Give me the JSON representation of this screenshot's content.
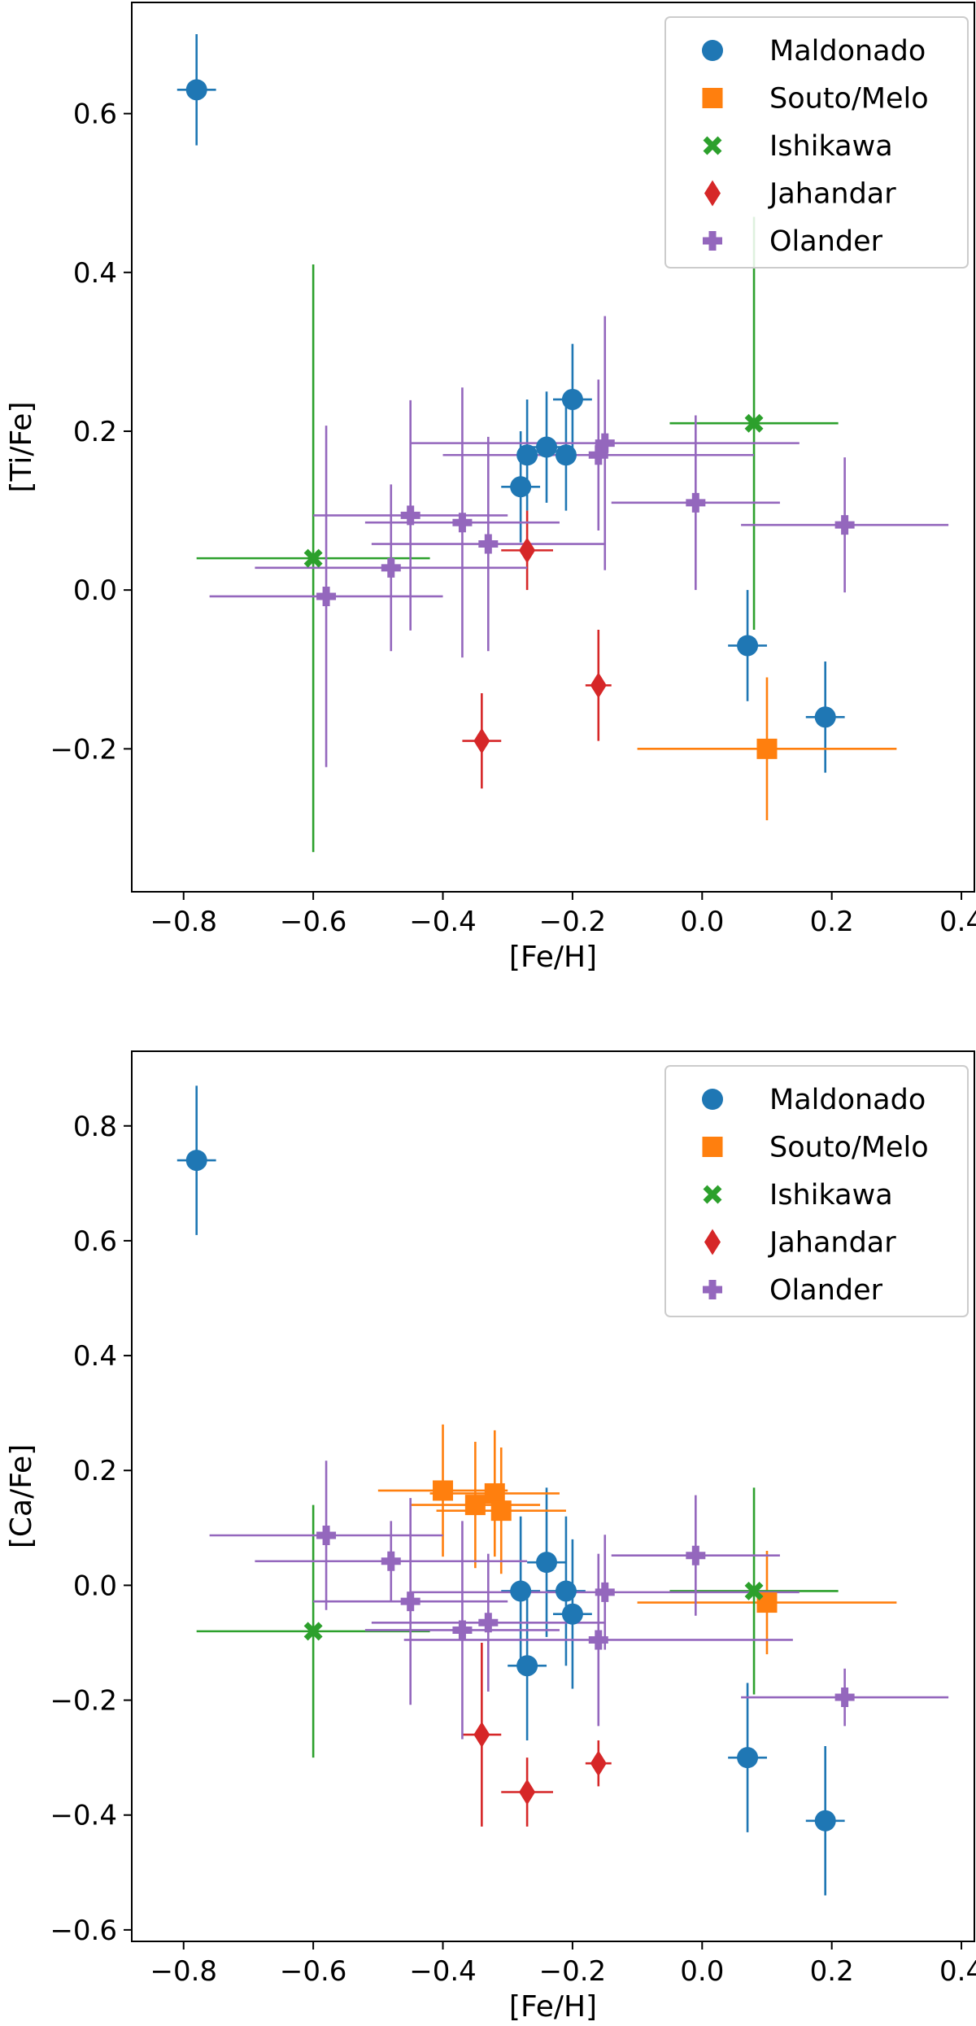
{
  "chart_data": [
    {
      "type": "scatter",
      "title": "",
      "xlabel": "[Fe/H]",
      "ylabel": "[Ti/Fe]",
      "xlim": [
        -0.88,
        0.42
      ],
      "ylim": [
        -0.38,
        0.74
      ],
      "xticks": [
        -0.8,
        -0.6,
        -0.4,
        -0.2,
        0.0,
        0.2,
        0.4
      ],
      "xtick_labels": [
        "−0.8",
        "−0.6",
        "−0.4",
        "−0.2",
        "0.0",
        "0.2",
        "0.4"
      ],
      "yticks": [
        -0.2,
        0.0,
        0.2,
        0.4,
        0.6
      ],
      "ytick_labels": [
        "−0.2",
        "0.0",
        "0.2",
        "0.4",
        "0.6"
      ],
      "legend_position": "top-right",
      "series": [
        {
          "name": "Maldonado",
          "color": "#1f77b4",
          "marker": "circle",
          "points": [
            {
              "x": -0.78,
              "y": 0.63,
              "xerr": 0.03,
              "yerr": 0.07
            },
            {
              "x": -0.28,
              "y": 0.13,
              "xerr": 0.03,
              "yerr": 0.07
            },
            {
              "x": -0.27,
              "y": 0.17,
              "xerr": 0.03,
              "yerr": 0.07
            },
            {
              "x": -0.24,
              "y": 0.18,
              "xerr": 0.03,
              "yerr": 0.07
            },
            {
              "x": -0.21,
              "y": 0.17,
              "xerr": 0.03,
              "yerr": 0.07
            },
            {
              "x": -0.2,
              "y": 0.24,
              "xerr": 0.03,
              "yerr": 0.07
            },
            {
              "x": 0.07,
              "y": -0.07,
              "xerr": 0.03,
              "yerr": 0.07
            },
            {
              "x": 0.19,
              "y": -0.16,
              "xerr": 0.03,
              "yerr": 0.07
            }
          ]
        },
        {
          "name": "Souto/Melo",
          "color": "#ff7f0e",
          "marker": "square",
          "points": [
            {
              "x": 0.1,
              "y": -0.2,
              "xerr": 0.2,
              "yerr": 0.09
            }
          ]
        },
        {
          "name": "Ishikawa",
          "color": "#2ca02c",
          "marker": "x",
          "points": [
            {
              "x": -0.6,
              "y": 0.04,
              "xerr": 0.18,
              "yerr": 0.37
            },
            {
              "x": 0.08,
              "y": 0.21,
              "xerr": 0.13,
              "yerr": 0.26
            }
          ]
        },
        {
          "name": "Jahandar",
          "color": "#d62728",
          "marker": "diamond",
          "points": [
            {
              "x": -0.34,
              "y": -0.19,
              "xerr": 0.03,
              "yerr": 0.06
            },
            {
              "x": -0.27,
              "y": 0.05,
              "xerr": 0.04,
              "yerr": 0.05
            },
            {
              "x": -0.16,
              "y": -0.12,
              "xerr": 0.02,
              "yerr": 0.07
            }
          ]
        },
        {
          "name": "Olander",
          "color": "#9467bd",
          "marker": "plus",
          "points": [
            {
              "x": -0.58,
              "y": -0.008,
              "xerr": 0.18,
              "yerr": 0.215
            },
            {
              "x": -0.48,
              "y": 0.028,
              "xerr": 0.21,
              "yerr": 0.105
            },
            {
              "x": -0.45,
              "y": 0.094,
              "xerr": 0.15,
              "yerr": 0.145
            },
            {
              "x": -0.37,
              "y": 0.085,
              "xerr": 0.15,
              "yerr": 0.17
            },
            {
              "x": -0.33,
              "y": 0.058,
              "xerr": 0.18,
              "yerr": 0.135
            },
            {
              "x": -0.16,
              "y": 0.17,
              "xerr": 0.24,
              "yerr": 0.095
            },
            {
              "x": -0.15,
              "y": 0.185,
              "xerr": 0.3,
              "yerr": 0.16
            },
            {
              "x": -0.01,
              "y": 0.11,
              "xerr": 0.13,
              "yerr": 0.11
            },
            {
              "x": 0.22,
              "y": 0.082,
              "xerr": 0.16,
              "yerr": 0.085
            }
          ]
        }
      ]
    },
    {
      "type": "scatter",
      "title": "",
      "xlabel": "[Fe/H]",
      "ylabel": "[Ca/Fe]",
      "xlim": [
        -0.88,
        0.42
      ],
      "ylim": [
        -0.62,
        0.93
      ],
      "xticks": [
        -0.8,
        -0.6,
        -0.4,
        -0.2,
        0.0,
        0.2,
        0.4
      ],
      "xtick_labels": [
        "−0.8",
        "−0.6",
        "−0.4",
        "−0.2",
        "0.0",
        "0.2",
        "0.4"
      ],
      "yticks": [
        -0.6,
        -0.4,
        -0.2,
        0.0,
        0.2,
        0.4,
        0.6,
        0.8
      ],
      "ytick_labels": [
        "−0.6",
        "−0.4",
        "−0.2",
        "0.0",
        "0.2",
        "0.4",
        "0.6",
        "0.8"
      ],
      "legend_position": "top-right",
      "series": [
        {
          "name": "Maldonado",
          "color": "#1f77b4",
          "marker": "circle",
          "points": [
            {
              "x": -0.78,
              "y": 0.74,
              "xerr": 0.03,
              "yerr": 0.13
            },
            {
              "x": -0.28,
              "y": -0.01,
              "xerr": 0.03,
              "yerr": 0.13
            },
            {
              "x": -0.27,
              "y": -0.14,
              "xerr": 0.03,
              "yerr": 0.13
            },
            {
              "x": -0.24,
              "y": 0.04,
              "xerr": 0.03,
              "yerr": 0.13
            },
            {
              "x": -0.21,
              "y": -0.01,
              "xerr": 0.03,
              "yerr": 0.13
            },
            {
              "x": -0.2,
              "y": -0.05,
              "xerr": 0.03,
              "yerr": 0.13
            },
            {
              "x": 0.07,
              "y": -0.3,
              "xerr": 0.03,
              "yerr": 0.13
            },
            {
              "x": 0.19,
              "y": -0.41,
              "xerr": 0.03,
              "yerr": 0.13
            }
          ]
        },
        {
          "name": "Souto/Melo",
          "color": "#ff7f0e",
          "marker": "square",
          "points": [
            {
              "x": -0.4,
              "y": 0.165,
              "xerr": 0.1,
              "yerr": 0.115
            },
            {
              "x": -0.35,
              "y": 0.14,
              "xerr": 0.1,
              "yerr": 0.11
            },
            {
              "x": -0.32,
              "y": 0.16,
              "xerr": 0.1,
              "yerr": 0.11
            },
            {
              "x": -0.31,
              "y": 0.13,
              "xerr": 0.1,
              "yerr": 0.11
            },
            {
              "x": 0.1,
              "y": -0.03,
              "xerr": 0.2,
              "yerr": 0.09
            }
          ]
        },
        {
          "name": "Ishikawa",
          "color": "#2ca02c",
          "marker": "x",
          "points": [
            {
              "x": -0.6,
              "y": -0.08,
              "xerr": 0.18,
              "yerr": 0.22
            },
            {
              "x": 0.08,
              "y": -0.01,
              "xerr": 0.13,
              "yerr": 0.18
            }
          ]
        },
        {
          "name": "Jahandar",
          "color": "#d62728",
          "marker": "diamond",
          "points": [
            {
              "x": -0.34,
              "y": -0.26,
              "xerr": 0.03,
              "yerr": 0.16
            },
            {
              "x": -0.27,
              "y": -0.36,
              "xerr": 0.04,
              "yerr": 0.06
            },
            {
              "x": -0.16,
              "y": -0.31,
              "xerr": 0.02,
              "yerr": 0.04
            }
          ]
        },
        {
          "name": "Olander",
          "color": "#9467bd",
          "marker": "plus",
          "points": [
            {
              "x": -0.58,
              "y": 0.087,
              "xerr": 0.18,
              "yerr": 0.13
            },
            {
              "x": -0.48,
              "y": 0.042,
              "xerr": 0.21,
              "yerr": 0.07
            },
            {
              "x": -0.45,
              "y": -0.028,
              "xerr": 0.15,
              "yerr": 0.18
            },
            {
              "x": -0.37,
              "y": -0.078,
              "xerr": 0.15,
              "yerr": 0.19
            },
            {
              "x": -0.33,
              "y": -0.065,
              "xerr": 0.18,
              "yerr": 0.12
            },
            {
              "x": -0.16,
              "y": -0.095,
              "xerr": 0.3,
              "yerr": 0.15
            },
            {
              "x": -0.15,
              "y": -0.012,
              "xerr": 0.3,
              "yerr": 0.1
            },
            {
              "x": -0.01,
              "y": 0.052,
              "xerr": 0.13,
              "yerr": 0.105
            },
            {
              "x": 0.22,
              "y": -0.195,
              "xerr": 0.16,
              "yerr": 0.05
            }
          ]
        }
      ]
    }
  ]
}
